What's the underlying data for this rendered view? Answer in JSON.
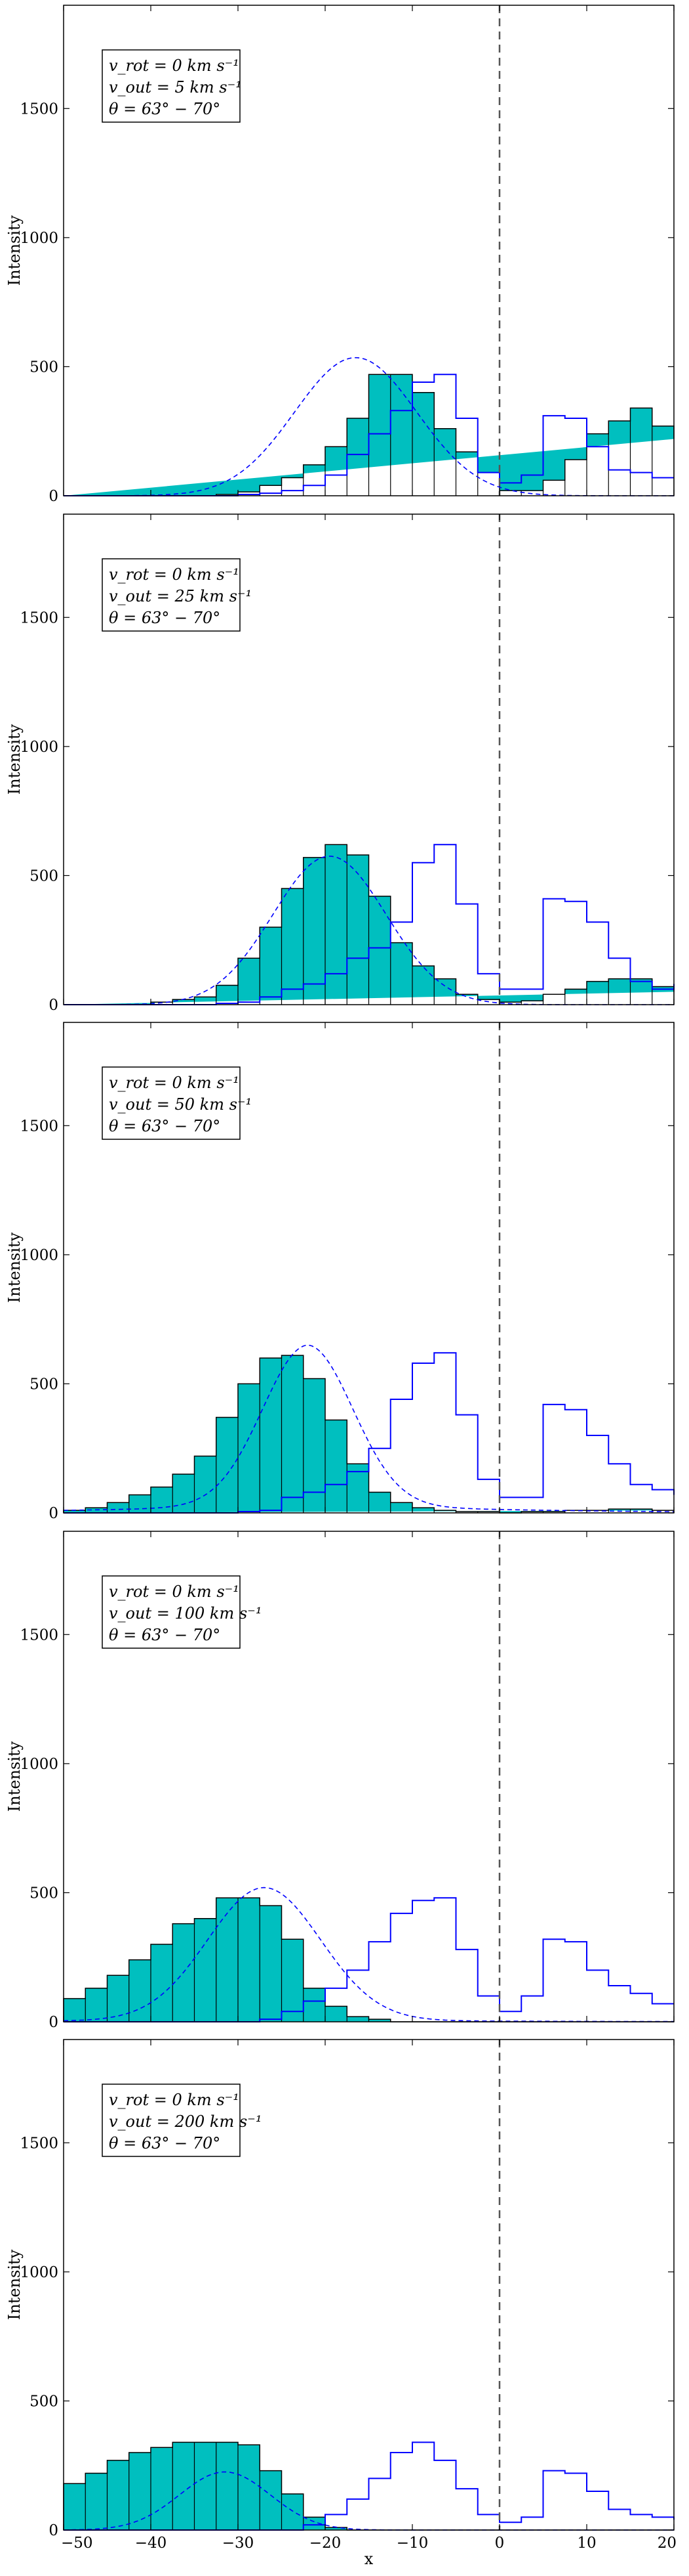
{
  "chart_data": [
    {
      "type": "area",
      "legend": [
        "v_rot = 0 km s⁻¹",
        "v_out = 5 km s⁻¹",
        "θ = 63° − 70°"
      ],
      "ylabel": "Intensity",
      "xlim": [
        -50,
        20
      ],
      "ylim": [
        0,
        1900
      ],
      "yticks": [
        0,
        500,
        1000,
        1500
      ],
      "xticks": [
        -50,
        -40,
        -30,
        -20,
        -10,
        0,
        10,
        20
      ],
      "bin_edges": [
        -50,
        -47.5,
        -45,
        -42.5,
        -40,
        -37.5,
        -35,
        -32.5,
        -30,
        -27.5,
        -25,
        -22.5,
        -20,
        -17.5,
        -15,
        -12.5,
        -10,
        -7.5,
        -5,
        -2.5,
        0,
        2.5,
        5,
        7.5,
        10,
        12.5,
        15,
        17.5,
        20
      ],
      "filled_series": [
        0,
        0,
        0,
        0,
        0,
        0,
        0,
        5,
        15,
        40,
        70,
        120,
        190,
        300,
        470,
        470,
        400,
        260,
        170,
        90,
        20,
        20,
        60,
        140,
        240,
        290,
        340,
        270,
        220
      ],
      "blue_step_series": [
        0,
        0,
        0,
        0,
        0,
        0,
        0,
        0,
        5,
        10,
        20,
        40,
        80,
        160,
        240,
        330,
        440,
        470,
        300,
        90,
        50,
        80,
        310,
        300,
        190,
        100,
        90,
        70,
        70
      ],
      "dashed_gaussian": {
        "amplitude": 535,
        "center": -16.5,
        "sigma": 7
      },
      "vline_x": 0
    },
    {
      "type": "area",
      "legend": [
        "v_rot = 0 km s⁻¹",
        "v_out = 25 km s⁻¹",
        "θ = 63° − 70°"
      ],
      "ylabel": "Intensity",
      "xlim": [
        -50,
        20
      ],
      "ylim": [
        0,
        1900
      ],
      "yticks": [
        0,
        500,
        1000,
        1500
      ],
      "xticks": [
        -50,
        -40,
        -30,
        -20,
        -10,
        0,
        10,
        20
      ],
      "bin_edges": [
        -50,
        -47.5,
        -45,
        -42.5,
        -40,
        -37.5,
        -35,
        -32.5,
        -30,
        -27.5,
        -25,
        -22.5,
        -20,
        -17.5,
        -15,
        -12.5,
        -10,
        -7.5,
        -5,
        -2.5,
        0,
        2.5,
        5,
        7.5,
        10,
        12.5,
        15,
        17.5,
        20
      ],
      "filled_series": [
        0,
        0,
        0,
        0,
        10,
        20,
        30,
        75,
        180,
        300,
        450,
        570,
        620,
        580,
        420,
        240,
        150,
        100,
        40,
        20,
        10,
        15,
        40,
        60,
        90,
        100,
        100,
        70,
        50
      ],
      "blue_step_series": [
        0,
        0,
        0,
        0,
        0,
        0,
        0,
        5,
        10,
        30,
        60,
        80,
        120,
        180,
        220,
        320,
        550,
        620,
        390,
        120,
        60,
        60,
        410,
        400,
        320,
        180,
        90,
        60,
        80
      ],
      "dashed_gaussian": {
        "amplitude": 575,
        "center": -19.5,
        "sigma": 6.5
      },
      "vline_x": 0
    },
    {
      "type": "area",
      "legend": [
        "v_rot = 0 km s⁻¹",
        "v_out = 50 km s⁻¹",
        "θ = 63° − 70°"
      ],
      "ylabel": "Intensity",
      "xlim": [
        -50,
        20
      ],
      "ylim": [
        0,
        1900
      ],
      "yticks": [
        0,
        500,
        1000,
        1500
      ],
      "xticks": [
        -50,
        -40,
        -30,
        -20,
        -10,
        0,
        10,
        20
      ],
      "bin_edges": [
        -50,
        -47.5,
        -45,
        -42.5,
        -40,
        -37.5,
        -35,
        -32.5,
        -30,
        -27.5,
        -25,
        -22.5,
        -20,
        -17.5,
        -15,
        -12.5,
        -10,
        -7.5,
        -5,
        -2.5,
        0,
        2.5,
        5,
        7.5,
        10,
        12.5,
        15,
        17.5,
        20
      ],
      "filled_series": [
        10,
        20,
        40,
        70,
        100,
        150,
        220,
        370,
        500,
        600,
        610,
        520,
        360,
        190,
        80,
        40,
        20,
        10,
        5,
        5,
        0,
        5,
        5,
        10,
        10,
        15,
        15,
        10,
        10
      ],
      "blue_step_series": [
        0,
        0,
        0,
        0,
        0,
        0,
        0,
        0,
        5,
        10,
        60,
        80,
        110,
        160,
        250,
        440,
        580,
        620,
        380,
        130,
        60,
        60,
        420,
        400,
        300,
        190,
        110,
        90,
        70
      ],
      "dashed_gaussian": {
        "amplitude": 610,
        "center": -22,
        "sigma": 5.2,
        "floor": 40
      },
      "vline_x": 0
    },
    {
      "type": "area",
      "legend": [
        "v_rot = 0 km s⁻¹",
        "v_out = 100 km s⁻¹",
        "θ = 63° − 70°"
      ],
      "ylabel": "Intensity",
      "xlim": [
        -50,
        20
      ],
      "ylim": [
        0,
        1900
      ],
      "yticks": [
        0,
        500,
        1000,
        1500
      ],
      "xticks": [
        -50,
        -40,
        -30,
        -20,
        -10,
        0,
        10,
        20
      ],
      "bin_edges": [
        -50,
        -47.5,
        -45,
        -42.5,
        -40,
        -37.5,
        -35,
        -32.5,
        -30,
        -27.5,
        -25,
        -22.5,
        -20,
        -17.5,
        -15,
        -12.5,
        -10,
        -7.5,
        -5,
        -2.5,
        0,
        2.5,
        5,
        7.5,
        10,
        12.5,
        15,
        17.5,
        20
      ],
      "filled_series": [
        90,
        130,
        180,
        240,
        300,
        380,
        400,
        480,
        480,
        450,
        320,
        130,
        60,
        20,
        10,
        0,
        0,
        0,
        0,
        0,
        0,
        0,
        0,
        0,
        0,
        0,
        0,
        0,
        0
      ],
      "blue_step_series": [
        0,
        0,
        0,
        0,
        0,
        0,
        0,
        0,
        0,
        10,
        40,
        80,
        130,
        200,
        310,
        420,
        470,
        480,
        280,
        100,
        40,
        100,
        320,
        310,
        200,
        140,
        110,
        70,
        70
      ],
      "dashed_gaussian": {
        "amplitude": 510,
        "center": -27,
        "sigma": 6.5,
        "floor": 10
      },
      "vline_x": 0
    },
    {
      "type": "area",
      "legend": [
        "v_rot = 0 km s⁻¹",
        "v_out = 200 km s⁻¹",
        "θ = 63° − 70°"
      ],
      "ylabel": "Intensity",
      "xlabel": "x",
      "xlim": [
        -50,
        20
      ],
      "ylim": [
        0,
        1900
      ],
      "yticks": [
        0,
        500,
        1000,
        1500
      ],
      "xticks": [
        -50,
        -40,
        -30,
        -20,
        -10,
        0,
        10,
        20
      ],
      "bin_edges": [
        -50,
        -47.5,
        -45,
        -42.5,
        -40,
        -37.5,
        -35,
        -32.5,
        -30,
        -27.5,
        -25,
        -22.5,
        -20,
        -17.5,
        -15,
        -12.5,
        -10,
        -7.5,
        -5,
        -2.5,
        0,
        2.5,
        5,
        7.5,
        10,
        12.5,
        15,
        17.5,
        20
      ],
      "filled_series": [
        180,
        220,
        270,
        300,
        320,
        340,
        340,
        340,
        330,
        230,
        140,
        50,
        10,
        0,
        0,
        0,
        0,
        0,
        0,
        0,
        0,
        0,
        0,
        0,
        0,
        0,
        0,
        0,
        0
      ],
      "blue_step_series": [
        0,
        0,
        0,
        0,
        0,
        0,
        0,
        0,
        0,
        0,
        0,
        20,
        60,
        120,
        200,
        300,
        340,
        270,
        160,
        60,
        30,
        50,
        230,
        220,
        150,
        80,
        60,
        50,
        40
      ],
      "dashed_gaussian": {
        "amplitude": 225,
        "center": -31.5,
        "sigma": 5.2
      },
      "vline_x": 0
    }
  ],
  "style": {
    "fill_color": "#00bfbf",
    "line_color": "#0000ff",
    "edge_color": "#000000",
    "vline_color": "#555555"
  }
}
